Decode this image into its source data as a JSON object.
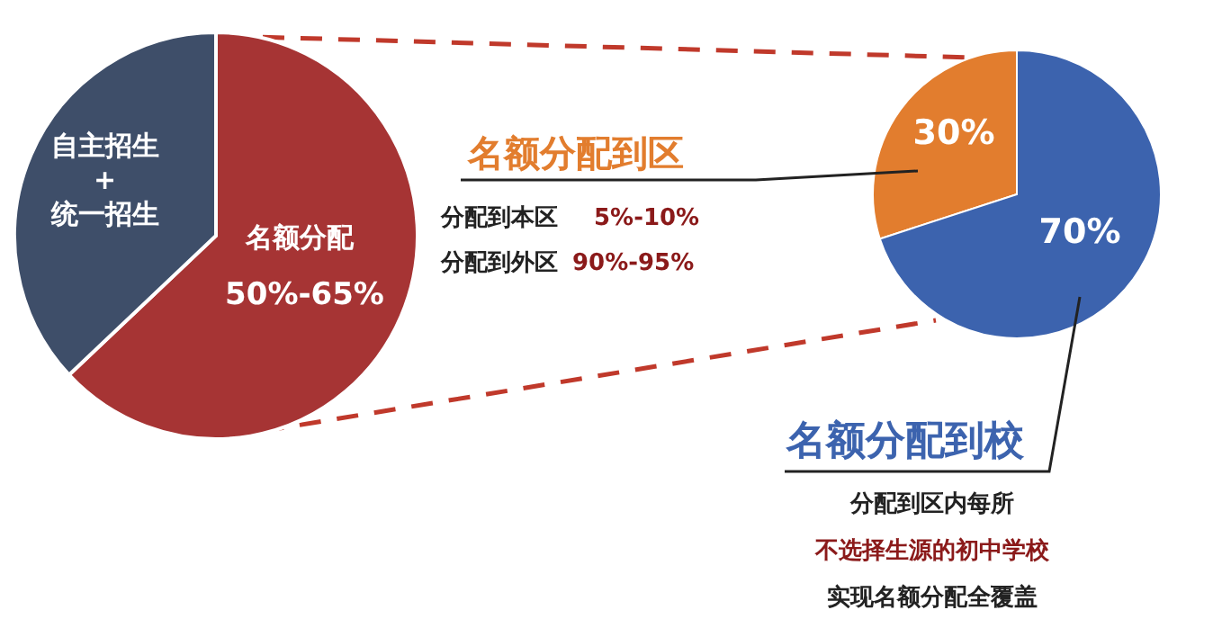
{
  "chart_data": [
    {
      "type": "pie",
      "categories": [
        "名额分配",
        "自主招生+统一招生"
      ],
      "values": [
        63,
        37
      ],
      "colors": [
        "#a63434",
        "#3e4e69"
      ],
      "annotations": [
        "50%-65%"
      ]
    },
    {
      "type": "pie",
      "categories": [
        "名额分配到区",
        "名额分配到校"
      ],
      "values": [
        30,
        70
      ],
      "colors": [
        "#e27d2e",
        "#3c63ae"
      ],
      "value_labels": [
        "30%",
        "70%"
      ],
      "annotations": [
        "分配到本区",
        "5%-10%",
        "分配到外区",
        "90%-95%",
        "分配到区内每所",
        "不选择生源的初中学校",
        "实现名额分配全覆盖"
      ]
    }
  ]
}
